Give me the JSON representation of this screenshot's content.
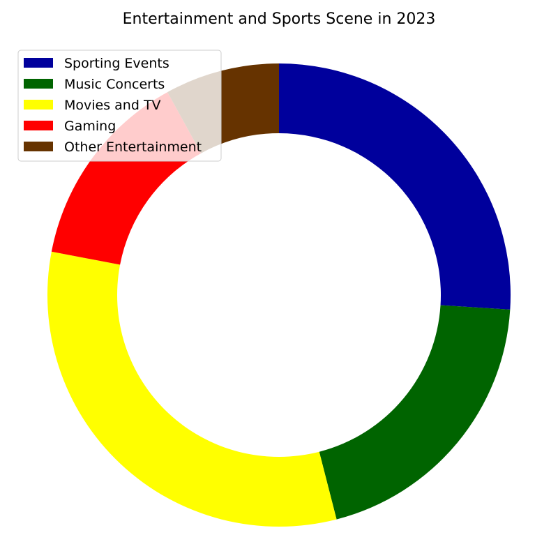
{
  "chart_data": {
    "type": "pie",
    "variant": "donut",
    "title": "Entertainment and Sports Scene in 2023",
    "categories": [
      "Sporting Events",
      "Music Concerts",
      "Movies and TV",
      "Gaming",
      "Other Entertainment"
    ],
    "values": [
      26,
      20,
      32,
      14,
      8
    ],
    "unit": "%",
    "colors": [
      "#00009c",
      "#006400",
      "#ffff00",
      "#ff0000",
      "#663300"
    ],
    "start_angle_deg": 90,
    "direction": "clockwise",
    "legend": {
      "position": "top-left",
      "entries": [
        "Sporting Events",
        "Music Concerts",
        "Movies and TV",
        "Gaming",
        "Other Entertainment"
      ]
    }
  }
}
